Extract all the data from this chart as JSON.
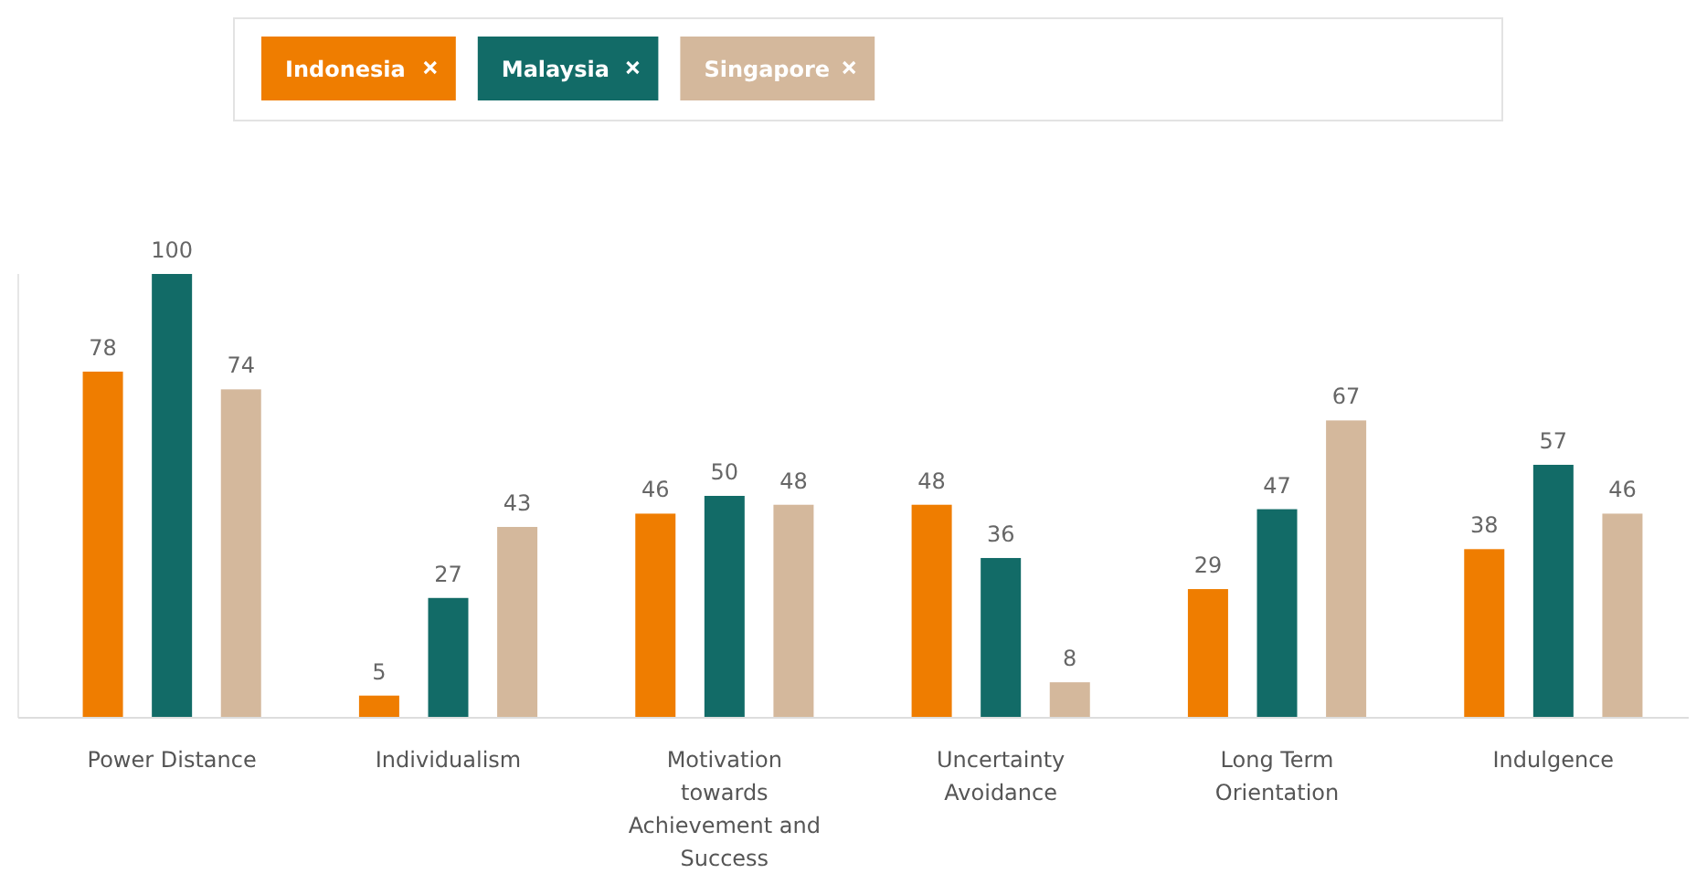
{
  "chart_data": {
    "type": "bar",
    "categories": [
      "Power Distance",
      "Individualism",
      "Motivation towards Achievement and Success",
      "Uncertainty Avoidance",
      "Long Term Orientation",
      "Indulgence"
    ],
    "series": [
      {
        "name": "Indonesia",
        "color": "#ef7d00",
        "values": [
          78,
          5,
          46,
          48,
          29,
          38
        ]
      },
      {
        "name": "Malaysia",
        "color": "#126b67",
        "values": [
          100,
          27,
          50,
          36,
          47,
          57
        ]
      },
      {
        "name": "Singapore",
        "color": "#d4b89c",
        "values": [
          74,
          43,
          48,
          8,
          67,
          46
        ]
      }
    ],
    "data_labels": true,
    "legend": "top"
  }
}
